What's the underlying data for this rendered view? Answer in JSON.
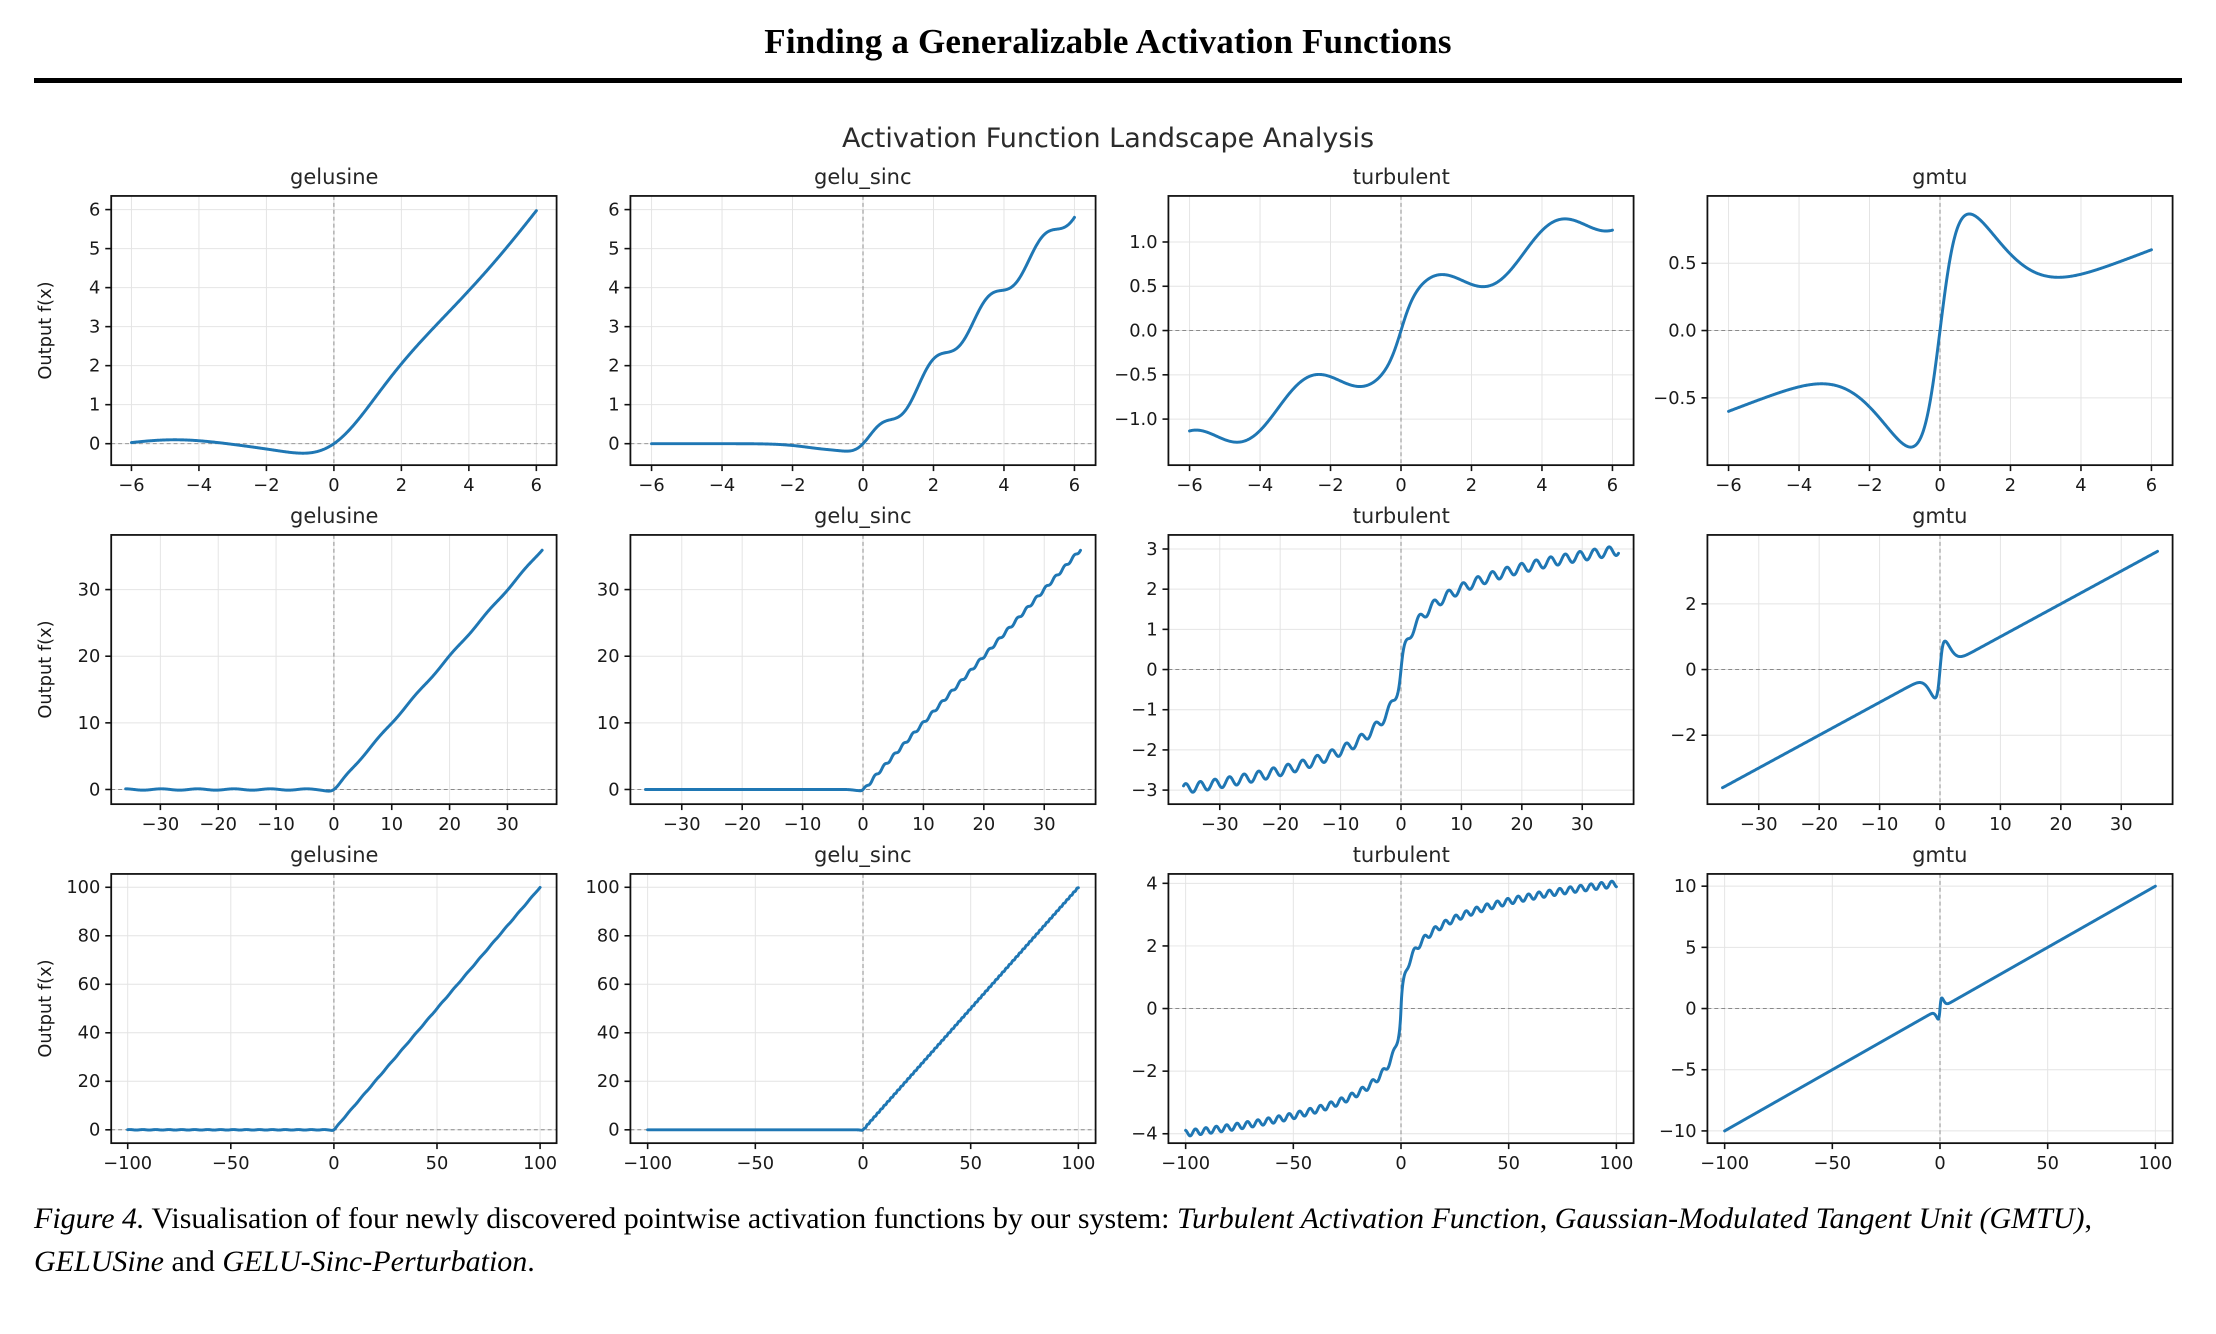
{
  "page": {
    "header_title": "Finding a Generalizable Activation Functions",
    "figure_suptitle": "Activation Function Landscape Analysis"
  },
  "caption": {
    "label": "Figure 4.",
    "text_1": " Visualisation of four newly discovered pointwise activation functions by our system: ",
    "em_1": "Turbulent Activation Function",
    "sep_1": ", ",
    "em_2": "Gaussian-Modulated Tangent Unit (GMTU)",
    "sep_2": ", ",
    "em_3": "GELUSine",
    "sep_3": " and ",
    "em_4": "GELU-Sinc-Perturbation",
    "end": "."
  },
  "colors": {
    "line": "#1f77b4",
    "grid": "#e4e4e4",
    "zero_line": "#8a8a8a",
    "spine": "#111111",
    "tick_text": "#1a1a1a"
  },
  "chart_data": [
    {
      "type": "line",
      "row": 1,
      "col": 1,
      "title": "gelusine",
      "ylabel": "Output f(x)",
      "xlim": [
        -6.6,
        6.6
      ],
      "ylim": [
        -0.55,
        6.35
      ],
      "x_range": [
        -6,
        6
      ],
      "xticks": [
        -6,
        -4,
        -2,
        0,
        2,
        4,
        6
      ],
      "xtick_labels": [
        "−6",
        "−4",
        "−2",
        "0",
        "2",
        "4",
        "6"
      ],
      "yticks": [
        0,
        1,
        2,
        3,
        4,
        5,
        6
      ],
      "ytick_labels": [
        "0",
        "1",
        "2",
        "3",
        "4",
        "5",
        "6"
      ],
      "grid": true,
      "zero_lines": true,
      "curve": {
        "fn": "gelu_sin",
        "params": {
          "a": 0.1,
          "b": 1
        },
        "samples": 700
      },
      "anchor_points": [
        [
          -6,
          0.03
        ],
        [
          -4.7,
          0.1
        ],
        [
          -3.1,
          0.0
        ],
        [
          -0.9,
          -0.24
        ],
        [
          0,
          0
        ],
        [
          1,
          0.93
        ],
        [
          2,
          2.05
        ],
        [
          4,
          3.98
        ],
        [
          6,
          5.97
        ]
      ]
    },
    {
      "type": "line",
      "row": 1,
      "col": 2,
      "title": "gelu_sinc",
      "ylabel": null,
      "xlim": [
        -6.6,
        6.6
      ],
      "ylim": [
        -0.55,
        6.35
      ],
      "x_range": [
        -6,
        6
      ],
      "xticks": [
        -6,
        -4,
        -2,
        0,
        2,
        4,
        6
      ],
      "xtick_labels": [
        "−6",
        "−4",
        "−2",
        "0",
        "2",
        "4",
        "6"
      ],
      "yticks": [
        0,
        1,
        2,
        3,
        4,
        5,
        6
      ],
      "ytick_labels": [
        "0",
        "1",
        "2",
        "3",
        "4",
        "5",
        "6"
      ],
      "grid": true,
      "zero_lines": true,
      "curve": {
        "fn": "gelu_sin_gated",
        "params": {
          "a": 0.22,
          "b": 4,
          "gate": 3
        },
        "samples": 700
      },
      "anchor_points": [
        [
          -6,
          0.0
        ],
        [
          -2,
          -0.05
        ],
        [
          -0.55,
          -0.25
        ],
        [
          0,
          0
        ],
        [
          1,
          0.9
        ],
        [
          1.5,
          1.2
        ],
        [
          2,
          2.0
        ],
        [
          3,
          3.1
        ],
        [
          4,
          4.05
        ],
        [
          4.7,
          4.85
        ],
        [
          6,
          6.03
        ]
      ]
    },
    {
      "type": "line",
      "row": 1,
      "col": 3,
      "title": "turbulent",
      "ylabel": null,
      "xlim": [
        -6.6,
        6.6
      ],
      "ylim": [
        -1.52,
        1.52
      ],
      "x_range": [
        -6,
        6
      ],
      "xticks": [
        -6,
        -4,
        -2,
        0,
        2,
        4,
        6
      ],
      "xtick_labels": [
        "−6",
        "−4",
        "−2",
        "0",
        "2",
        "4",
        "6"
      ],
      "yticks": [
        -1,
        -0.5,
        0,
        0.5,
        1
      ],
      "ytick_labels": [
        "−1.0",
        "−0.5",
        "0.0",
        "0.5",
        "1.0"
      ],
      "grid": true,
      "zero_lines": true,
      "curve": {
        "fn": "lin_sin_tanh",
        "params": {
          "s": 0.18,
          "a": 0.2,
          "f": 1.8,
          "c": 0.25,
          "k": 3
        },
        "samples": 700
      },
      "anchor_points": [
        [
          -6,
          -1.33
        ],
        [
          -4.6,
          -1.2
        ],
        [
          -1.6,
          -0.6
        ],
        [
          0,
          0
        ],
        [
          1.6,
          0.6
        ],
        [
          2.3,
          0.56
        ],
        [
          4.6,
          1.2
        ],
        [
          6,
          1.33
        ]
      ]
    },
    {
      "type": "line",
      "row": 1,
      "col": 4,
      "title": "gmtu",
      "ylabel": null,
      "xlim": [
        -6.6,
        6.6
      ],
      "ylim": [
        -1.0,
        1.0
      ],
      "x_range": [
        -6,
        6
      ],
      "xticks": [
        -6,
        -4,
        -2,
        0,
        2,
        4,
        6
      ],
      "xtick_labels": [
        "−6",
        "−4",
        "−2",
        "0",
        "2",
        "4",
        "6"
      ],
      "yticks": [
        -0.5,
        0,
        0.5
      ],
      "ytick_labels": [
        "−0.5",
        "0.0",
        "0.5"
      ],
      "grid": true,
      "zero_lines": true,
      "curve": {
        "fn": "lin_tanh_gauss",
        "params": {
          "s": 0.1,
          "A": 1.0,
          "k": 2,
          "sig": 4
        },
        "samples": 700
      },
      "anchor_points": [
        [
          -6,
          -0.6
        ],
        [
          -3.7,
          -0.44
        ],
        [
          -1,
          -0.85
        ],
        [
          0,
          0
        ],
        [
          1,
          0.85
        ],
        [
          3.7,
          0.43
        ],
        [
          6,
          0.6
        ]
      ]
    },
    {
      "type": "line",
      "row": 2,
      "col": 1,
      "title": "gelusine",
      "ylabel": "Output f(x)",
      "xlim": [
        -38.5,
        38.5
      ],
      "ylim": [
        -2.2,
        38.2
      ],
      "x_range": [
        -36,
        36
      ],
      "xticks": [
        -30,
        -20,
        -10,
        0,
        10,
        20,
        30
      ],
      "xtick_labels": [
        "−30",
        "−20",
        "−10",
        "0",
        "10",
        "20",
        "30"
      ],
      "yticks": [
        0,
        10,
        20,
        30
      ],
      "ytick_labels": [
        "0",
        "10",
        "20",
        "30"
      ],
      "grid": true,
      "zero_lines": true,
      "curve": {
        "fn": "gelu_sin",
        "params": {
          "a": 0.1,
          "b": 1
        },
        "samples": 900
      },
      "anchor_points": [
        [
          -36,
          0.1
        ],
        [
          -10,
          0.05
        ],
        [
          0,
          0
        ],
        [
          10,
          10.05
        ],
        [
          20,
          20.1
        ],
        [
          36,
          36.0
        ]
      ]
    },
    {
      "type": "line",
      "row": 2,
      "col": 2,
      "title": "gelu_sinc",
      "ylabel": null,
      "xlim": [
        -38.5,
        38.5
      ],
      "ylim": [
        -2.2,
        38.2
      ],
      "x_range": [
        -36,
        36
      ],
      "xticks": [
        -30,
        -20,
        -10,
        0,
        10,
        20,
        30
      ],
      "xtick_labels": [
        "−30",
        "−20",
        "−10",
        "0",
        "10",
        "20",
        "30"
      ],
      "yticks": [
        0,
        10,
        20,
        30
      ],
      "ytick_labels": [
        "0",
        "10",
        "20",
        "30"
      ],
      "grid": true,
      "zero_lines": true,
      "curve": {
        "fn": "gelu_sin_gated",
        "params": {
          "a": 0.22,
          "b": 4,
          "gate": 3
        },
        "samples": 900
      },
      "anchor_points": [
        [
          -36,
          0
        ],
        [
          0,
          0
        ],
        [
          10,
          10.2
        ],
        [
          20,
          20.1
        ],
        [
          36,
          36.1
        ]
      ]
    },
    {
      "type": "line",
      "row": 2,
      "col": 3,
      "title": "turbulent",
      "ylabel": null,
      "xlim": [
        -38.5,
        38.5
      ],
      "ylim": [
        -3.35,
        3.35
      ],
      "x_range": [
        -36,
        36
      ],
      "xticks": [
        -30,
        -20,
        -10,
        0,
        10,
        20,
        30
      ],
      "xtick_labels": [
        "−30",
        "−20",
        "−10",
        "0",
        "10",
        "20",
        "30"
      ],
      "yticks": [
        -3,
        -2,
        -1,
        0,
        1,
        2,
        3
      ],
      "ytick_labels": [
        "−3",
        "−2",
        "−1",
        "0",
        "1",
        "2",
        "3"
      ],
      "grid": true,
      "zero_lines": true,
      "curve": {
        "fn": "log_sin",
        "params": {
          "a": 0.78,
          "d": 0.12,
          "f": 2.6,
          "c": 0.15,
          "k": 3
        },
        "samples": 1200
      },
      "anchor_points": [
        [
          -35,
          -2.95
        ],
        [
          -10,
          -2.0
        ],
        [
          -5,
          -1.4
        ],
        [
          0,
          0
        ],
        [
          5,
          1.4
        ],
        [
          10,
          2.0
        ],
        [
          35,
          2.95
        ]
      ]
    },
    {
      "type": "line",
      "row": 2,
      "col": 4,
      "title": "gmtu",
      "ylabel": null,
      "xlim": [
        -38.5,
        38.5
      ],
      "ylim": [
        -4.1,
        4.1
      ],
      "x_range": [
        -36,
        36
      ],
      "xticks": [
        -30,
        -20,
        -10,
        0,
        10,
        20,
        30
      ],
      "xtick_labels": [
        "−30",
        "−20",
        "−10",
        "0",
        "10",
        "20",
        "30"
      ],
      "yticks": [
        -2,
        0,
        2
      ],
      "ytick_labels": [
        "−2",
        "0",
        "2"
      ],
      "grid": true,
      "zero_lines": true,
      "curve": {
        "fn": "lin_tanh_gauss",
        "params": {
          "s": 0.1,
          "A": 1.0,
          "k": 2,
          "sig": 4
        },
        "samples": 900
      },
      "anchor_points": [
        [
          -35,
          -3.5
        ],
        [
          -1,
          -0.85
        ],
        [
          0,
          0
        ],
        [
          1,
          0.85
        ],
        [
          35,
          3.5
        ]
      ]
    },
    {
      "type": "line",
      "row": 3,
      "col": 1,
      "title": "gelusine",
      "ylabel": "Output f(x)",
      "xlim": [
        -108,
        108
      ],
      "ylim": [
        -5.5,
        105.5
      ],
      "x_range": [
        -100,
        100
      ],
      "xticks": [
        -100,
        -50,
        0,
        50,
        100
      ],
      "xtick_labels": [
        "−100",
        "−50",
        "0",
        "50",
        "100"
      ],
      "yticks": [
        0,
        20,
        40,
        60,
        80,
        100
      ],
      "ytick_labels": [
        "0",
        "20",
        "40",
        "60",
        "80",
        "100"
      ],
      "grid": true,
      "zero_lines": true,
      "curve": {
        "fn": "gelu_sin",
        "params": {
          "a": 0.1,
          "b": 1
        },
        "samples": 1200
      },
      "anchor_points": [
        [
          -100,
          0.05
        ],
        [
          0,
          0
        ],
        [
          50,
          50
        ],
        [
          100,
          100
        ]
      ]
    },
    {
      "type": "line",
      "row": 3,
      "col": 2,
      "title": "gelu_sinc",
      "ylabel": null,
      "xlim": [
        -108,
        108
      ],
      "ylim": [
        -5.5,
        105.5
      ],
      "x_range": [
        -100,
        100
      ],
      "xticks": [
        -100,
        -50,
        0,
        50,
        100
      ],
      "xtick_labels": [
        "−100",
        "−50",
        "0",
        "50",
        "100"
      ],
      "yticks": [
        0,
        20,
        40,
        60,
        80,
        100
      ],
      "ytick_labels": [
        "0",
        "20",
        "40",
        "60",
        "80",
        "100"
      ],
      "grid": true,
      "zero_lines": true,
      "curve": {
        "fn": "gelu_sin_gated",
        "params": {
          "a": 0.22,
          "b": 4,
          "gate": 3
        },
        "samples": 1200
      },
      "anchor_points": [
        [
          -100,
          0
        ],
        [
          0,
          0
        ],
        [
          50,
          50.1
        ],
        [
          100,
          100
        ]
      ]
    },
    {
      "type": "line",
      "row": 3,
      "col": 3,
      "title": "turbulent",
      "ylabel": null,
      "xlim": [
        -108,
        108
      ],
      "ylim": [
        -4.3,
        4.3
      ],
      "x_range": [
        -100,
        100
      ],
      "xticks": [
        -100,
        -50,
        0,
        50,
        100
      ],
      "xtick_labels": [
        "−100",
        "−50",
        "0",
        "50",
        "100"
      ],
      "yticks": [
        -4,
        -2,
        0,
        2,
        4
      ],
      "ytick_labels": [
        "−4",
        "−2",
        "0",
        "2",
        "4"
      ],
      "grid": true,
      "zero_lines": true,
      "curve": {
        "fn": "log_sin",
        "params": {
          "a": 0.82,
          "d": 0.1,
          "f": 1.3,
          "c": 0.2,
          "k": 3
        },
        "samples": 1600
      },
      "anchor_points": [
        [
          -100,
          -3.95
        ],
        [
          -50,
          -3.4
        ],
        [
          -10,
          -2.1
        ],
        [
          0,
          0
        ],
        [
          10,
          2.1
        ],
        [
          50,
          3.4
        ],
        [
          100,
          3.95
        ]
      ]
    },
    {
      "type": "line",
      "row": 3,
      "col": 4,
      "title": "gmtu",
      "ylabel": null,
      "xlim": [
        -108,
        108
      ],
      "ylim": [
        -11,
        11
      ],
      "x_range": [
        -100,
        100
      ],
      "xticks": [
        -100,
        -50,
        0,
        50,
        100
      ],
      "xtick_labels": [
        "−100",
        "−50",
        "0",
        "50",
        "100"
      ],
      "yticks": [
        -10,
        -5,
        0,
        5,
        10
      ],
      "ytick_labels": [
        "−10",
        "−5",
        "0",
        "5",
        "10"
      ],
      "grid": true,
      "zero_lines": true,
      "curve": {
        "fn": "lin_tanh_gauss",
        "params": {
          "s": 0.1,
          "A": 1.0,
          "k": 2,
          "sig": 4
        },
        "samples": 1200
      },
      "anchor_points": [
        [
          -100,
          -10
        ],
        [
          -1,
          -0.85
        ],
        [
          0,
          0
        ],
        [
          1,
          0.85
        ],
        [
          100,
          10
        ]
      ]
    }
  ]
}
